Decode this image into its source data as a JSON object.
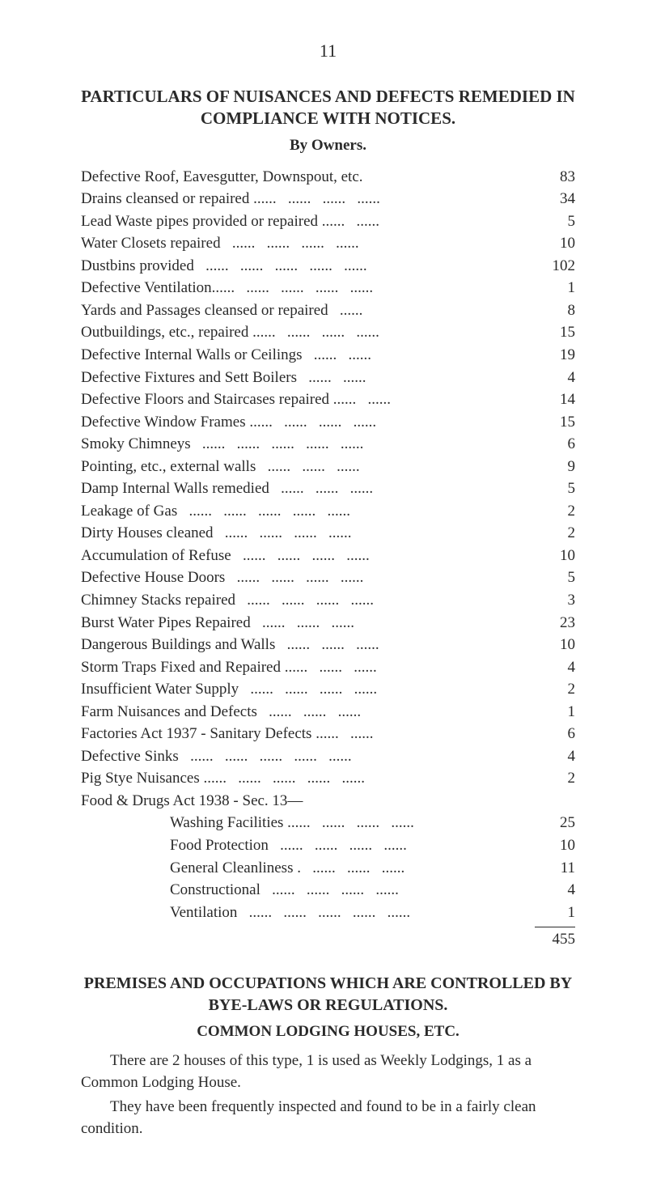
{
  "pageNumber": "11",
  "mainHeading": "PARTICULARS OF NUISANCES AND DEFECTS REMEDIED IN COMPLIANCE WITH NOTICES.",
  "byOwners": "By Owners.",
  "items": [
    {
      "label": "Defective Roof, Eavesgutter, Downspout, etc.",
      "value": "83"
    },
    {
      "label": "Drains cleansed or repaired ......   ......   ......   ......",
      "value": "34"
    },
    {
      "label": "Lead Waste pipes provided or repaired ......   ......",
      "value": "5"
    },
    {
      "label": "Water Closets repaired   ......   ......   ......   ......",
      "value": "10"
    },
    {
      "label": "Dustbins provided   ......   ......   ......   ......   ......",
      "value": "102"
    },
    {
      "label": "Defective Ventilation......   ......   ......   ......   ......",
      "value": "1"
    },
    {
      "label": "Yards and Passages cleansed or repaired   ......",
      "value": "8"
    },
    {
      "label": "Outbuildings, etc., repaired ......   ......   ......   ......",
      "value": "15"
    },
    {
      "label": "Defective Internal Walls or Ceilings   ......   ......",
      "value": "19"
    },
    {
      "label": "Defective Fixtures and Sett Boilers   ......   ......",
      "value": "4"
    },
    {
      "label": "Defective Floors and Staircases repaired ......   ......",
      "value": "14"
    },
    {
      "label": "Defective Window Frames ......   ......   ......   ......",
      "value": "15"
    },
    {
      "label": "Smoky Chimneys   ......   ......   ......   ......   ......",
      "value": "6"
    },
    {
      "label": "Pointing, etc., external walls   ......   ......   ......",
      "value": "9"
    },
    {
      "label": "Damp Internal Walls remedied   ......   ......   ......",
      "value": "5"
    },
    {
      "label": "Leakage of Gas   ......   ......   ......   ......   ......",
      "value": "2"
    },
    {
      "label": "Dirty Houses cleaned   ......   ......   ......   ......",
      "value": "2"
    },
    {
      "label": "Accumulation of Refuse   ......   ......   ......   ......",
      "value": "10"
    },
    {
      "label": "Defective House Doors   ......   ......   ......   ......",
      "value": "5"
    },
    {
      "label": "Chimney Stacks repaired   ......   ......   ......   ......",
      "value": "3"
    },
    {
      "label": "Burst Water Pipes Repaired   ......   ......   ......",
      "value": "23"
    },
    {
      "label": "Dangerous Buildings and Walls   ......   ......   ......",
      "value": "10"
    },
    {
      "label": "Storm Traps Fixed and Repaired ......   ......   ......",
      "value": "4"
    },
    {
      "label": "Insufficient Water Supply   ......   ......   ......   ......",
      "value": "2"
    },
    {
      "label": "Farm Nuisances and Defects   ......   ......   ......",
      "value": "1"
    },
    {
      "label": "Factories Act 1937 - Sanitary Defects ......   ......",
      "value": "6"
    },
    {
      "label": "Defective Sinks   ......   ......   ......   ......   ......",
      "value": "4"
    },
    {
      "label": "Pig Stye Nuisances ......   ......   ......   ......   ......",
      "value": "2"
    },
    {
      "label": "Food & Drugs Act 1938 - Sec. 13—",
      "value": ""
    }
  ],
  "subItems": [
    {
      "label": "Washing Facilities ......   ......   ......   ......",
      "value": "25"
    },
    {
      "label": "Food Protection   ......   ......   ......   ......",
      "value": "10"
    },
    {
      "label": "General Cleanliness .   ......   ......   ......",
      "value": "11"
    },
    {
      "label": "Constructional   ......   ......   ......   ......",
      "value": "4"
    },
    {
      "label": "Ventilation   ......   ......   ......   ......   ......",
      "value": "1"
    }
  ],
  "total": "455",
  "premises": {
    "heading": "PREMISES AND OCCUPATIONS WHICH ARE CONTROLLED BY BYE-LAWS OR REGULATIONS.",
    "subheading": "COMMON LODGING HOUSES, ETC.",
    "para1": "There are 2 houses of this type, 1 is used as Weekly Lodgings, 1 as a Common Lodging House.",
    "para2": "They have been frequently inspected and found to be in a fairly clean condition."
  },
  "colors": {
    "text": "#2a2a2a",
    "background": "#ffffff"
  },
  "typography": {
    "bodyFontSize": 19,
    "headingFontSize": 21
  }
}
